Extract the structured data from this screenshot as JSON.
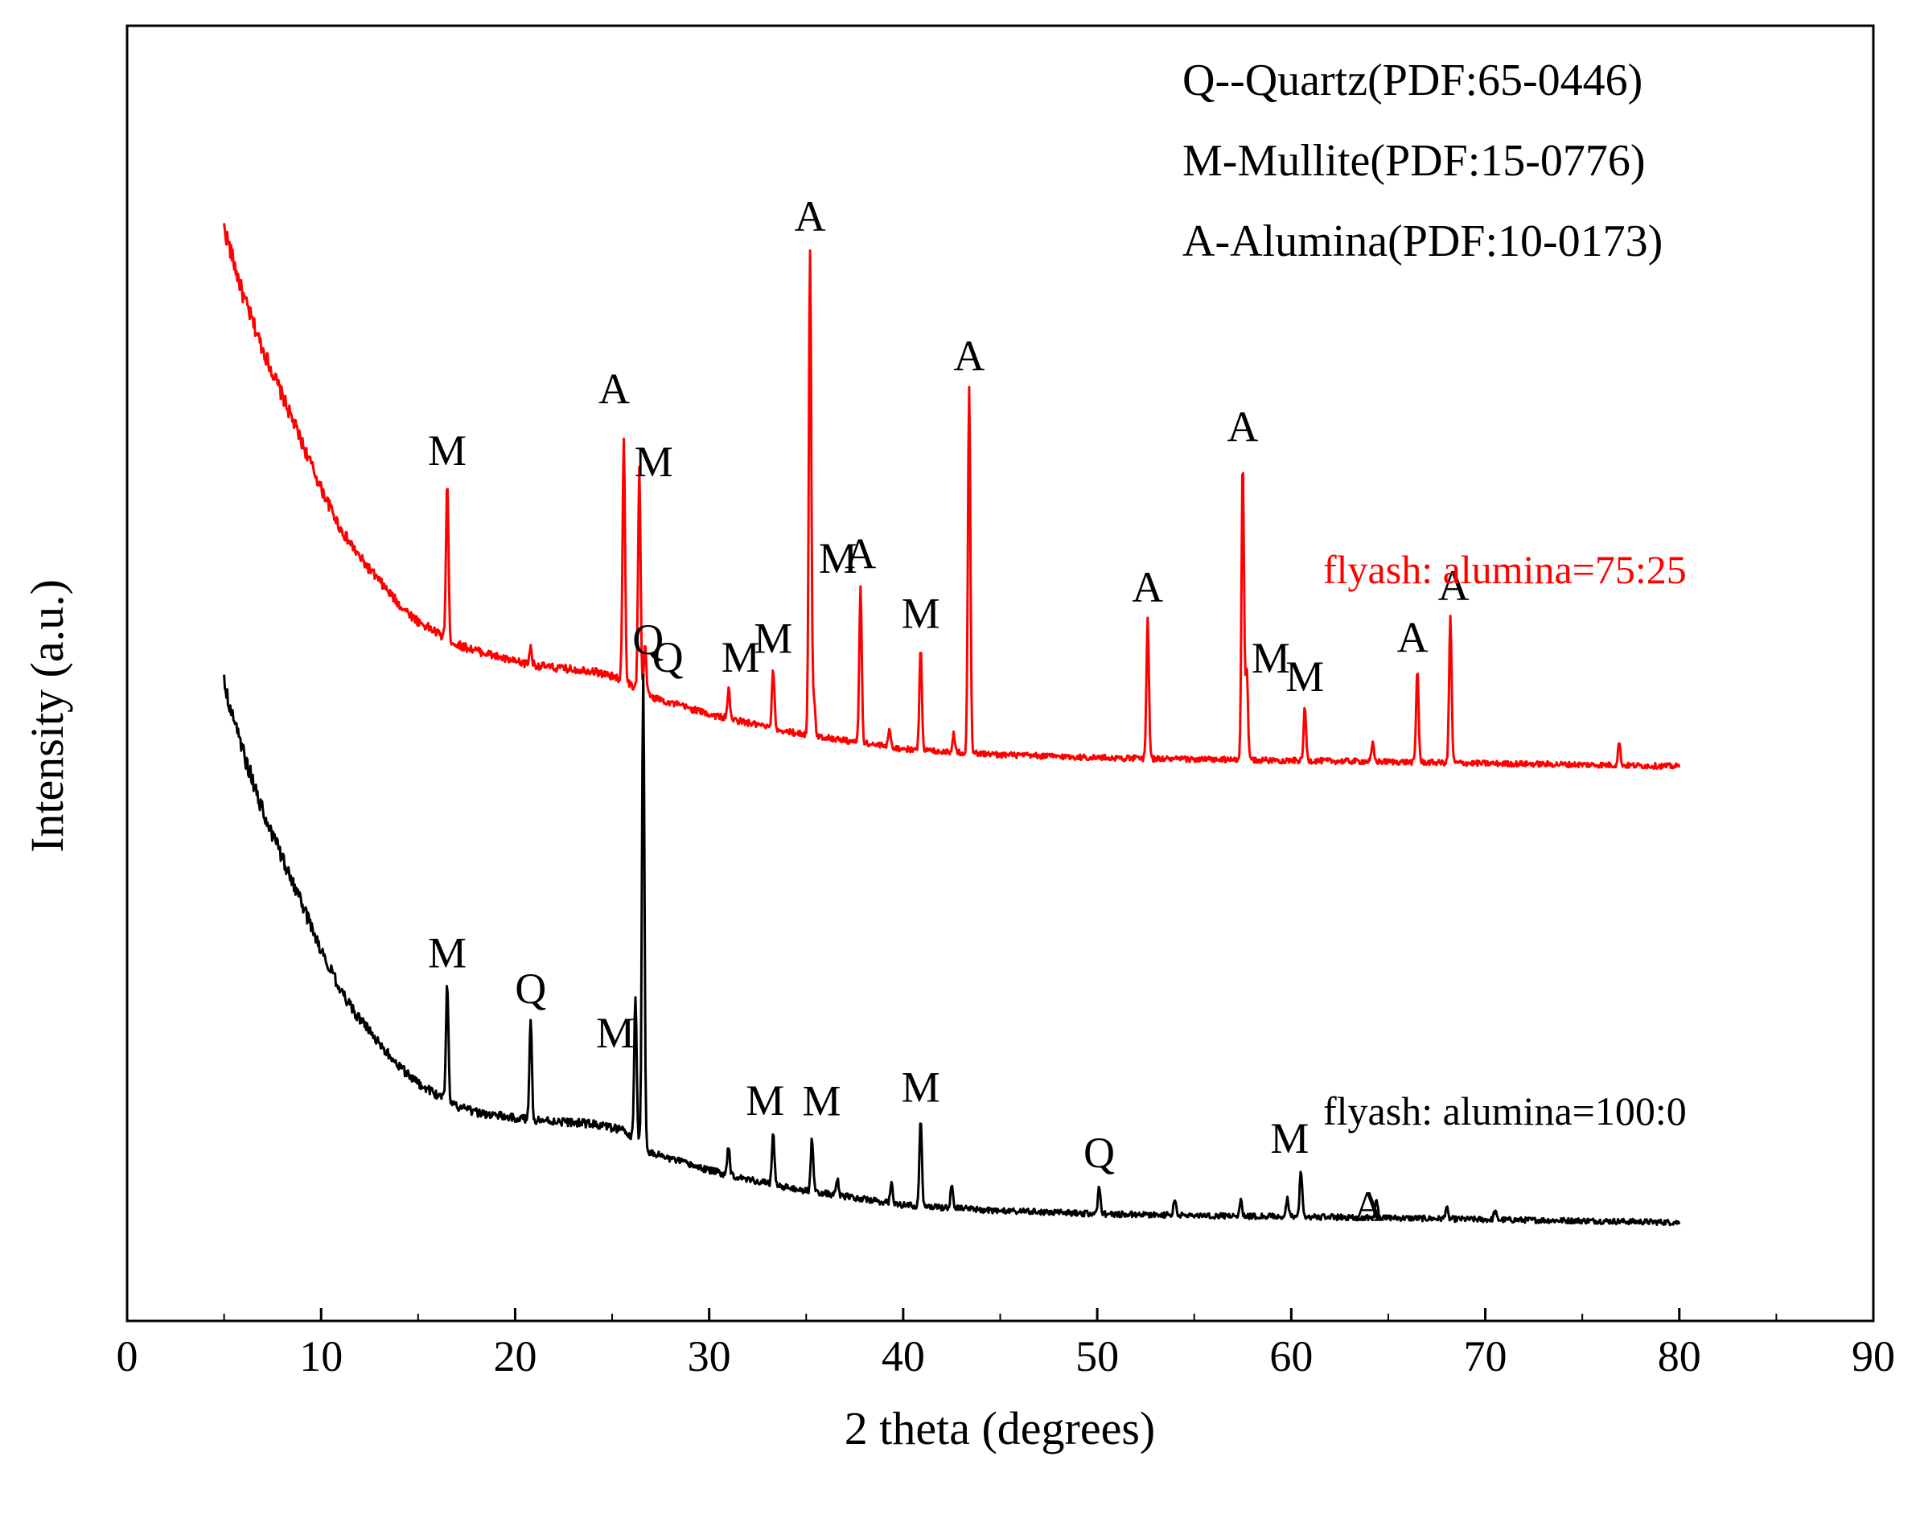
{
  "chart_data": {
    "type": "line",
    "title": "",
    "xlabel": "2 theta (degrees)",
    "ylabel": "Intensity (a.u.)",
    "xlim": [
      0,
      90
    ],
    "x_ticks": [
      "0",
      "10",
      "20",
      "30",
      "40",
      "50",
      "60",
      "70",
      "80",
      "90"
    ],
    "y_ticks_visible": false,
    "grid": false,
    "legend": {
      "placement": "top-right",
      "entries": [
        "Q--Quartz(PDF:65-0446)",
        "M-Mullite(PDF:15-0776)",
        "A-Alumina(PDF:10-0173)"
      ]
    },
    "series": [
      {
        "name": "flyash:alumina=75:25",
        "label": "flyash: alumina=75:25",
        "color": "#ff0000",
        "background": [
          [
            5,
            100
          ],
          [
            6,
            88
          ],
          [
            7,
            79
          ],
          [
            8,
            71
          ],
          [
            9,
            63
          ],
          [
            10,
            55
          ],
          [
            11,
            48
          ],
          [
            12,
            43
          ],
          [
            13,
            39
          ],
          [
            14,
            35
          ],
          [
            15,
            32
          ],
          [
            16,
            30
          ],
          [
            17,
            28
          ],
          [
            18,
            27
          ],
          [
            20,
            25
          ],
          [
            22,
            24
          ],
          [
            24,
            23.5
          ],
          [
            25.5,
            22
          ],
          [
            27,
            19
          ],
          [
            29,
            17
          ],
          [
            30,
            16
          ],
          [
            32,
            14.5
          ],
          [
            34,
            13
          ],
          [
            36,
            12
          ],
          [
            40,
            10
          ],
          [
            45,
            9
          ],
          [
            50,
            8.5
          ],
          [
            55,
            8.2
          ],
          [
            60,
            8
          ],
          [
            65,
            7.8
          ],
          [
            70,
            7.5
          ],
          [
            75,
            7.3
          ],
          [
            80,
            7
          ]
        ],
        "peaks": [
          {
            "x": 16.5,
            "height": 27,
            "label": "M"
          },
          {
            "x": 20.8,
            "height": 3,
            "label": ""
          },
          {
            "x": 25.6,
            "height": 42,
            "label": "A"
          },
          {
            "x": 26.4,
            "height": 38,
            "label": "M"
          },
          {
            "x": 26.7,
            "height": 8,
            "label": "Q"
          },
          {
            "x": 31.0,
            "height": 5,
            "label": "M"
          },
          {
            "x": 33.3,
            "height": 10,
            "label": "M"
          },
          {
            "x": 35.2,
            "height": 84,
            "label": "A"
          },
          {
            "x": 35.4,
            "height": 6,
            "label": "M"
          },
          {
            "x": 37.8,
            "height": 27,
            "label": "A"
          },
          {
            "x": 39.3,
            "height": 3,
            "label": ""
          },
          {
            "x": 40.9,
            "height": 18,
            "label": "M"
          },
          {
            "x": 42.6,
            "height": 3,
            "label": ""
          },
          {
            "x": 43.4,
            "height": 63,
            "label": "A"
          },
          {
            "x": 52.6,
            "height": 24,
            "label": "A"
          },
          {
            "x": 57.5,
            "height": 52,
            "label": "A"
          },
          {
            "x": 57.7,
            "height": 16,
            "label": "M"
          },
          {
            "x": 60.7,
            "height": 9,
            "label": "M"
          },
          {
            "x": 64.2,
            "height": 3,
            "label": ""
          },
          {
            "x": 66.5,
            "height": 16,
            "label": "A"
          },
          {
            "x": 68.2,
            "height": 25,
            "label": "A"
          },
          {
            "x": 76.9,
            "height": 4,
            "label": ""
          }
        ]
      },
      {
        "name": "flyash:alumina=100:0",
        "label": "flyash: alumina=100:0",
        "color": "#000000",
        "background": [
          [
            5,
            100
          ],
          [
            6,
            88
          ],
          [
            7,
            78
          ],
          [
            8,
            70
          ],
          [
            9,
            62
          ],
          [
            10,
            54
          ],
          [
            11,
            47
          ],
          [
            12,
            42
          ],
          [
            13,
            38
          ],
          [
            14,
            34
          ],
          [
            15,
            31
          ],
          [
            16,
            29
          ],
          [
            17,
            27
          ],
          [
            18,
            26
          ],
          [
            20,
            25
          ],
          [
            22,
            24.5
          ],
          [
            24,
            24
          ],
          [
            25.5,
            23
          ],
          [
            27,
            19
          ],
          [
            29,
            17
          ],
          [
            30,
            16
          ],
          [
            32,
            14.5
          ],
          [
            34,
            13
          ],
          [
            36,
            12
          ],
          [
            40,
            10
          ],
          [
            45,
            9
          ],
          [
            50,
            8.5
          ],
          [
            55,
            8.2
          ],
          [
            60,
            8
          ],
          [
            65,
            7.8
          ],
          [
            70,
            7.5
          ],
          [
            75,
            7.3
          ],
          [
            80,
            7
          ]
        ],
        "peaks": [
          {
            "x": 16.5,
            "height": 20,
            "label": "M"
          },
          {
            "x": 20.8,
            "height": 17,
            "label": "Q"
          },
          {
            "x": 26.2,
            "height": 25,
            "label": "M"
          },
          {
            "x": 26.6,
            "height": 82,
            "label": "Q"
          },
          {
            "x": 31.0,
            "height": 5,
            "label": ""
          },
          {
            "x": 33.3,
            "height": 9,
            "label": "M"
          },
          {
            "x": 35.3,
            "height": 9,
            "label": "M"
          },
          {
            "x": 36.6,
            "height": 3,
            "label": ""
          },
          {
            "x": 39.4,
            "height": 4,
            "label": ""
          },
          {
            "x": 40.9,
            "height": 15,
            "label": "M"
          },
          {
            "x": 42.5,
            "height": 4,
            "label": ""
          },
          {
            "x": 50.1,
            "height": 5,
            "label": "Q"
          },
          {
            "x": 54.0,
            "height": 3,
            "label": ""
          },
          {
            "x": 57.4,
            "height": 3,
            "label": ""
          },
          {
            "x": 59.8,
            "height": 3,
            "label": ""
          },
          {
            "x": 60.5,
            "height": 8,
            "label": "M"
          },
          {
            "x": 64.4,
            "height": 3,
            "label": "A"
          },
          {
            "x": 68.0,
            "height": 2,
            "label": ""
          },
          {
            "x": 70.5,
            "height": 1.5,
            "label": ""
          }
        ]
      }
    ]
  }
}
